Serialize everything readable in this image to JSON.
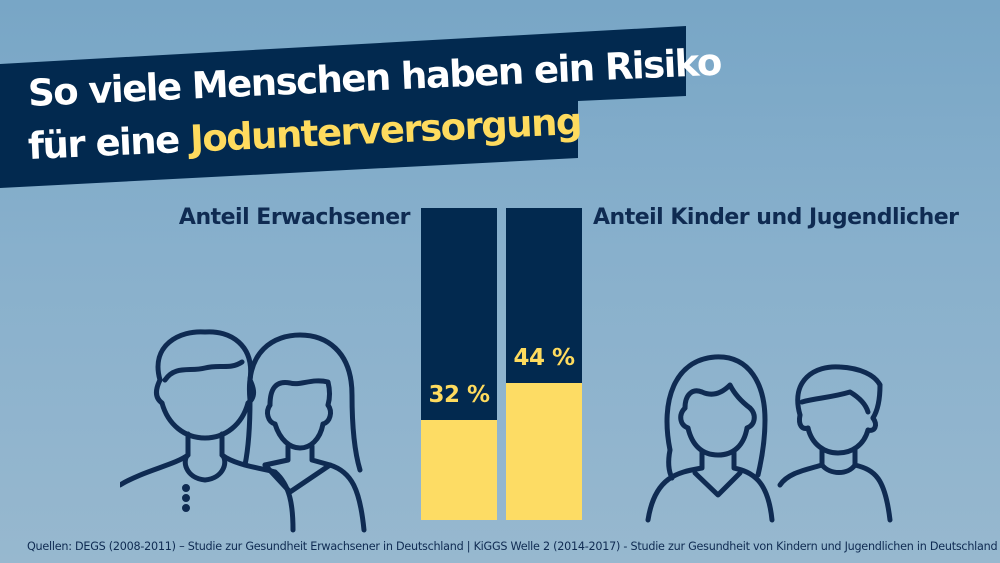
{
  "title": {
    "line1": "So viele Menschen haben ein Risiko",
    "line2_prefix": "für eine ",
    "line2_highlight": "Jodunterversorgung"
  },
  "colors": {
    "navy": "#02294f",
    "yellow": "#fddc64",
    "text_dark": "#0f2b52",
    "background": "#88b0cc"
  },
  "icons": {
    "left": "adults-icon",
    "right": "children-icon"
  },
  "chart_data": {
    "type": "bar",
    "stacked": true,
    "title": "So viele Menschen haben ein Risiko für eine Jodunterversorgung",
    "categories": [
      "Anteil Erwachsener",
      "Anteil Kinder und Jugendlicher"
    ],
    "values": [
      32,
      44
    ],
    "value_labels": [
      "32 %",
      "44 %"
    ],
    "unit": "%",
    "ylim": [
      0,
      100
    ],
    "grid": false,
    "xlabel": "",
    "ylabel": ""
  },
  "source": "Quellen: DEGS (2008-2011) – Studie zur Gesundheit Erwachsener in Deutschland | KiGGS Welle 2 (2014-2017) - Studie zur Gesundheit von Kindern und Jugendlichen in Deutschland"
}
